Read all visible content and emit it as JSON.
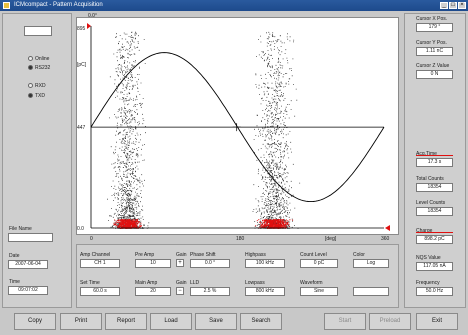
{
  "window": {
    "title": "ICMcompact - Pattern Acquisition",
    "minimize": "_",
    "maximize": "□",
    "close": "×"
  },
  "left": {
    "top_field": "",
    "radios": [
      {
        "label": "Online",
        "selected": false
      },
      {
        "label": "RS232",
        "selected": true
      },
      {
        "label": "RXD",
        "selected": false
      },
      {
        "label": "TXD",
        "selected": true
      }
    ],
    "file_name_label": "File Name",
    "file_name": "",
    "date_label": "Date",
    "date": "2007-06-04",
    "time_label": "Time",
    "time": "09:07:02"
  },
  "right": {
    "cursor_x_label": "Cursor X Pos.",
    "cursor_x": "179 °",
    "cursor_y_label": "Cursor Y Pos.",
    "cursor_y": "1.11 nC",
    "cursor_z_label": "Cursor Z Value",
    "cursor_z": "0 N",
    "acq_time_label": "Acq.Time",
    "acq_time": "17.3 s",
    "total_counts_label": "Total Counts",
    "total_counts": "18354",
    "level_counts_label": "Level Counts",
    "level_counts": "18354",
    "charge_label": "Charge",
    "charge": "898.2 pC",
    "nqs_label": "NQS Value",
    "nqs": "117.05 nA",
    "frequency_label": "Frequency",
    "frequency": "50.0 Hz"
  },
  "plot": {
    "y_unit": "[pC]",
    "y_top": "895",
    "y_mid": "447",
    "y_bottom": "0.0",
    "x_left": "0",
    "x_mid": "180",
    "x_unit": "[deg]",
    "x_right": "360",
    "top_phase": "0.0°",
    "accent": "#e01010"
  },
  "chart_data": {
    "type": "scatter",
    "xlim": [
      0,
      360
    ],
    "ylim": [
      0,
      895
    ],
    "xticks": [
      "0",
      "180",
      "360"
    ],
    "yticks": [
      "0.0",
      "447",
      "895"
    ],
    "ylabel": "[pC]",
    "xlabel": "[deg]",
    "sine_reference": {
      "offset": 447,
      "amplitude": 330,
      "period_deg": 360
    },
    "clusters": [
      {
        "x_center": 45,
        "x_spread": 30,
        "y_max": 870,
        "density": "high"
      },
      {
        "x_center": 225,
        "x_spread": 35,
        "y_max": 870,
        "density": "high"
      }
    ]
  },
  "controls": {
    "amp_channel_label": "Amp Channel",
    "amp_channel": "CH 1",
    "pre_amp_label": "Pre Amp",
    "pre_amp": "10",
    "gain_label": "Gain",
    "gain1_btn": "+",
    "gain2_btn": "−",
    "phase_shift_label": "Phase Shift",
    "phase_shift": "0.0 °",
    "highpass_label": "Highpass",
    "highpass": "100 kHz",
    "count_level_label": "Count Level",
    "count_level": "0 pC",
    "color_label": "Color",
    "color": "Log",
    "set_time_label": "Set Time",
    "set_time": "60.0 s",
    "main_amp_label": "Main Amp",
    "main_amp": "20",
    "lld_label": "LLD",
    "lld": "2.5 %",
    "lowpass_label": "Lowpass",
    "lowpass": "800 kHz",
    "waveform_label": "Waveform",
    "waveform": "Sine",
    "extra_field": ""
  },
  "buttons": [
    {
      "label": "Copy",
      "enabled": true
    },
    {
      "label": "Print",
      "enabled": true
    },
    {
      "label": "Report",
      "enabled": true
    },
    {
      "label": "Load",
      "enabled": true
    },
    {
      "label": "Save",
      "enabled": true
    },
    {
      "label": "Search",
      "enabled": true
    },
    {
      "label": "Start",
      "enabled": false
    },
    {
      "label": "Preload",
      "enabled": false
    },
    {
      "label": "Exit",
      "enabled": true
    }
  ]
}
